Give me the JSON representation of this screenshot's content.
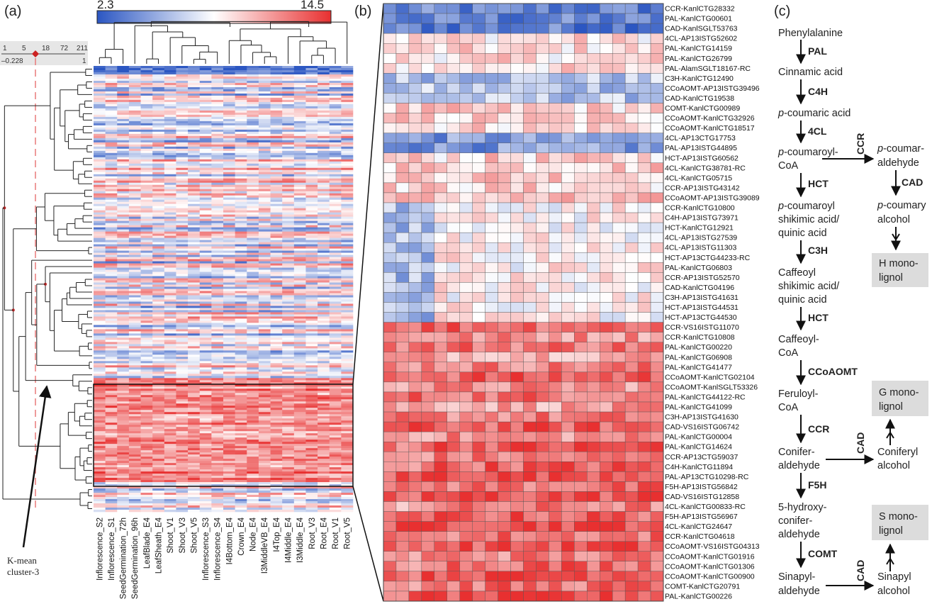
{
  "panels": {
    "a": "(a)",
    "b": "(b)",
    "c": "(c)"
  },
  "colorbar": {
    "min": "2.3",
    "max": "14.5",
    "low_color": "#2b56c2",
    "mid_color": "#ffffff",
    "high_color": "#e83030"
  },
  "scale_bar": {
    "ticks": [
      "1",
      "5",
      "18",
      "72",
      "211"
    ],
    "low": "–0.228",
    "high": "1"
  },
  "kmean_label": [
    "K-mean",
    "cluster-3"
  ],
  "samples": [
    "Inflorescence_S2",
    "Inflorescence_S1",
    "SeedGermination_72h",
    "SeedGermination_96h",
    "LeafBlade_E4",
    "LeafSheath_E4",
    "Shoot_V1",
    "Shoot_V3",
    "Shoot_V5",
    "Inflorescence_S3",
    "Inflorescence_S4",
    "I4Bottom_E4",
    "Crown_E4",
    "Node_E4",
    "I3MiddleVB_E4",
    "I4Top_E4",
    "I4Middle_E4",
    "I3Middle_E4",
    "Root_V3",
    "Root_E4",
    "Root_V1",
    "Root_V5"
  ],
  "genes": [
    "CCR-KanlCTG28332",
    "PAL-KanlCTG00601",
    "CAD-KanlSGLT53763",
    "4CL-AP13ISTG52602",
    "PAL-KanlCTG14159",
    "PAL-KanlCTG26799",
    "PAL-AlamSGLT18167-RC",
    "C3H-KanlCTG12490",
    "CCoAOMT-AP13ISTG39496",
    "CAD-KanlCTG19538",
    "COMT-KanlCTG00989",
    "CCoAOMT-KanlCTG32926",
    "CCoAOMT-KanlCTG18517",
    "4CL-AP13CTG17753",
    "PAL-AP13ISTG44895",
    "HCT-AP13ISTG60562",
    "4CL-KanlCTG38781-RC",
    "4CL-KanlCTG05715",
    "CCR-AP13ISTG43142",
    "CCoAOMT-AP13ISTG39089",
    "CCR-KanlCTG10800",
    "C4H-AP13ISTG73971",
    "HCT-KanlCTG12921",
    "4CL-AP13ISTG27539",
    "4CL-AP13ISTG11303",
    "HCT-AP13CTG44233-RC",
    "PAL-KanlCTG06803",
    "CCR-AP13ISTG52570",
    "CAD-KanlCTG04196",
    "C3H-AP13ISTG41631",
    "HCT-AP13ISTG44531",
    "HCT-AP13CTG44530",
    "CCR-VS16ISTG11070",
    "CCR-KanlCTG10808",
    "PAL-KanlCTG00220",
    "PAL-KanlCTG06908",
    "PAL-KanlCTG41477",
    "CCoAOMT-KanlCTG02104",
    "CCoAOMT-KanlSGLT53326",
    "PAL-KanlCTG44122-RC",
    "PAL-KanlCTG41099",
    "C3H-AP13ISTG41630",
    "CAD-VS16ISTG06742",
    "PAL-KanlCTG00004",
    "PAL-KanlCTG14624",
    "CCR-AP13CTG59037",
    "C4H-KanlCTG11894",
    "PAL-AP13CTG10298-RC",
    "F5H-AP13ISTG56842",
    "CAD-VS16ISTG12858",
    "4CL-KanlCTG00833-RC",
    "F5H-AP13ISTG56967",
    "4CL-KanlCTG24647",
    "CCR-KanlCTG04618",
    "CCoAOMT-VS16ISTG04313",
    "CCoAOMT-KanlCTG01916",
    "CCoAOMT-KanlCTG01306",
    "CCoAOMT-KanlCTG00900",
    "COMT-KanlCTG20791",
    "PAL-KanlCTG00226"
  ],
  "pathway": {
    "compounds": [
      [
        "Phenylalanine"
      ],
      [
        "Cinnamic acid"
      ],
      [
        "p-coumaric acid"
      ],
      [
        "p-coumaroyl-",
        "CoA"
      ],
      [
        "p-coumaroyl",
        "shikimic acid/",
        "quinic acid"
      ],
      [
        "Caffeoyl",
        "shikimic acid/",
        "quinic acid"
      ],
      [
        "Caffeoyl-",
        "CoA"
      ],
      [
        "Feruloyl-",
        "CoA"
      ],
      [
        "Conifer-",
        "aldehyde"
      ],
      [
        "5-hydroxy-",
        "conifer-",
        "aldehyde"
      ],
      [
        "Sinapyl-",
        "aldehyde"
      ]
    ],
    "enzymes": [
      "PAL",
      "C4H",
      "4CL",
      "HCT",
      "C3H",
      "HCT",
      "CCoAOMT",
      "CCR",
      "F5H",
      "COMT"
    ],
    "branch_compounds": [
      [
        "p-coumar-",
        "aldehyde"
      ],
      [
        "p-coumary",
        "alcohol"
      ],
      [
        "Coniferyl",
        "alcohol"
      ],
      [
        "Sinapyl",
        "alcohol"
      ]
    ],
    "branch_enzymes": [
      "CCR",
      "CAD",
      "CAD",
      "CAD"
    ],
    "monolignols": [
      [
        "H mono-",
        "lignol"
      ],
      [
        "G mono-",
        "lignol"
      ],
      [
        "S mono-",
        "lignol"
      ]
    ],
    "box_color": "#dcdcdc"
  }
}
